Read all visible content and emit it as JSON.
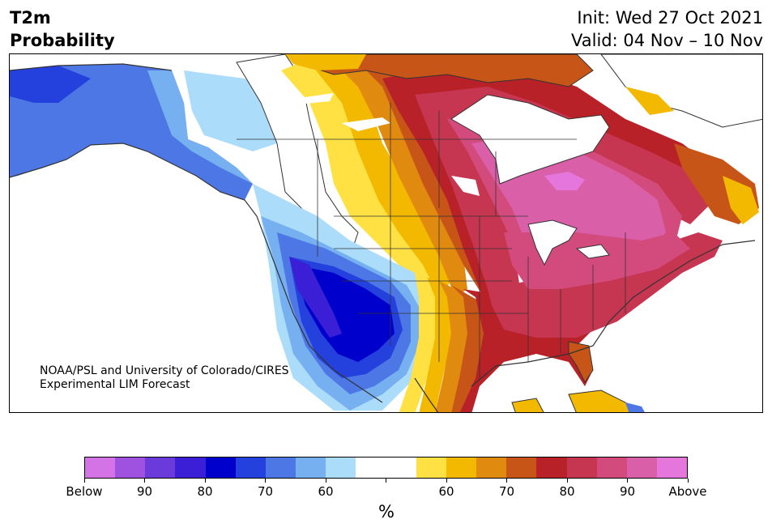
{
  "header": {
    "title_line1": "T2m",
    "title_line2": "Probability",
    "init": "Init: Wed 27 Oct 2021",
    "valid": "Valid: 04 Nov – 10 Nov"
  },
  "credit": {
    "line1": "NOAA/PSL and University of Colorado/CIRES",
    "line2": "Experimental LIM Forecast"
  },
  "colorbar": {
    "colors": [
      "#d473e6",
      "#9f52df",
      "#6b3adb",
      "#3a1fd6",
      "#0000cc",
      "#2541dd",
      "#4e77e6",
      "#77b0f0",
      "#abdcfa",
      "#ffffff",
      "#ffffff",
      "#ffe144",
      "#f3b800",
      "#e08a10",
      "#c85518",
      "#b82127",
      "#c63650",
      "#d24b7c",
      "#d960a8",
      "#e476dc"
    ],
    "labels": [
      "Below",
      "90",
      "80",
      "70",
      "60",
      "",
      "60",
      "70",
      "80",
      "90",
      "Above"
    ],
    "units": "%"
  },
  "map_colors": {
    "ocean": "#ffffff",
    "coast": "#333333",
    "border": "#333333"
  }
}
